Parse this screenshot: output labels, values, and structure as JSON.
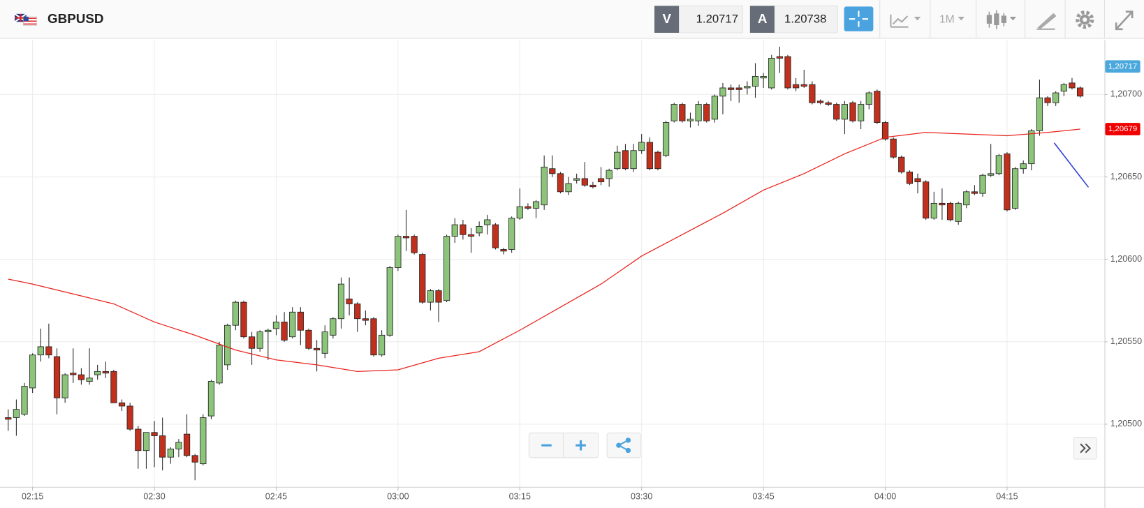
{
  "header": {
    "symbol": "GBPUSD",
    "bid_label": "V",
    "bid": 1.20717,
    "ask_label": "A",
    "ask": 1.20738,
    "timeframe": "1M"
  },
  "chart_data": {
    "type": "candlestick",
    "up_color": "#8cc47a",
    "down_color": "#c0301c",
    "grid": true,
    "xlim": [
      "02:11",
      "04:27"
    ],
    "xticks": [
      "02:15",
      "02:30",
      "02:45",
      "03:00",
      "03:15",
      "03:30",
      "03:45",
      "04:00",
      "04:15"
    ],
    "ylim": [
      1.20462,
      1.20733
    ],
    "yticks": [
      {
        "value": 1.205,
        "label": "1,20500"
      },
      {
        "value": 1.2055,
        "label": "1,20550"
      },
      {
        "value": 1.206,
        "label": "1,20600"
      },
      {
        "value": 1.2065,
        "label": "1,20650"
      },
      {
        "value": 1.207,
        "label": "1,20700"
      }
    ],
    "candles": {
      "x": [
        "02:12",
        "02:13",
        "02:14",
        "02:15",
        "02:16",
        "02:17",
        "02:18",
        "02:19",
        "02:20",
        "02:21",
        "02:22",
        "02:23",
        "02:24",
        "02:25",
        "02:26",
        "02:27",
        "02:28",
        "02:29",
        "02:30",
        "02:31",
        "02:32",
        "02:33",
        "02:34",
        "02:35",
        "02:36",
        "02:37",
        "02:38",
        "02:39",
        "02:40",
        "02:41",
        "02:42",
        "02:43",
        "02:44",
        "02:45",
        "02:46",
        "02:47",
        "02:48",
        "02:49",
        "02:50",
        "02:51",
        "02:52",
        "02:53",
        "02:54",
        "02:55",
        "02:56",
        "02:57",
        "02:58",
        "02:59",
        "03:00",
        "03:01",
        "03:02",
        "03:03",
        "03:04",
        "03:05",
        "03:06",
        "03:07",
        "03:08",
        "03:09",
        "03:10",
        "03:11",
        "03:12",
        "03:13",
        "03:14",
        "03:15",
        "03:16",
        "03:17",
        "03:18",
        "03:19",
        "03:20",
        "03:21",
        "03:22",
        "03:23",
        "03:24",
        "03:25",
        "03:26",
        "03:27",
        "03:28",
        "03:29",
        "03:30",
        "03:31",
        "03:32",
        "03:33",
        "03:34",
        "03:35",
        "03:36",
        "03:37",
        "03:38",
        "03:39",
        "03:40",
        "03:41",
        "03:42",
        "03:43",
        "03:44",
        "03:45",
        "03:46",
        "03:47",
        "03:48",
        "03:49",
        "03:50",
        "03:51",
        "03:52",
        "03:53",
        "03:54",
        "03:55",
        "03:56",
        "03:57",
        "03:58",
        "03:59",
        "04:00",
        "04:01",
        "04:02",
        "04:03",
        "04:04",
        "04:05",
        "04:06",
        "04:07",
        "04:08",
        "04:09",
        "04:10",
        "04:11",
        "04:12",
        "04:13",
        "04:14",
        "04:15",
        "04:16",
        "04:17",
        "04:18",
        "04:19",
        "04:20",
        "04:21",
        "04:22",
        "04:23",
        "04:24"
      ],
      "open": [
        1.20504,
        1.20504,
        1.20506,
        1.20522,
        1.20542,
        1.20547,
        1.20541,
        1.20516,
        1.20531,
        1.2053,
        1.20526,
        1.2053,
        1.20532,
        1.20532,
        1.20513,
        1.20511,
        1.20497,
        1.20484,
        1.20495,
        1.20493,
        1.2048,
        1.20485,
        1.20494,
        1.20481,
        1.20476,
        1.20505,
        1.20525,
        1.20536,
        1.2056,
        1.20574,
        1.20553,
        1.20546,
        1.20556,
        1.20558,
        1.20562,
        1.20553,
        1.20568,
        1.20557,
        1.20546,
        1.20543,
        1.20554,
        1.20564,
        1.20576,
        1.20573,
        1.20564,
        1.20564,
        1.20542,
        1.20554,
        1.20595,
        1.20614,
        1.20614,
        1.20603,
        1.20574,
        1.20581,
        1.20575,
        1.20614,
        1.20621,
        1.20615,
        1.20616,
        1.20621,
        1.20621,
        1.20606,
        1.20606,
        1.20625,
        1.20632,
        1.20631,
        1.20633,
        1.20655,
        1.20652,
        1.20641,
        1.20648,
        1.20649,
        1.20645,
        1.20649,
        1.20649,
        1.20655,
        1.20666,
        1.20655,
        1.20666,
        1.20671,
        1.20665,
        1.20663,
        1.20684,
        1.20694,
        1.20684,
        1.20684,
        1.20694,
        1.20685,
        1.20699,
        1.20704,
        1.20704,
        1.20704,
        1.20705,
        1.2071,
        1.20704,
        1.20723,
        1.20723,
        1.20706,
        1.20706,
        1.20706,
        1.20696,
        1.20695,
        1.20694,
        1.20685,
        1.20695,
        1.20684,
        1.20694,
        1.20702,
        1.20683,
        1.20673,
        1.20662,
        1.20653,
        1.20649,
        1.20647,
        1.20625,
        1.20634,
        1.20634,
        1.20623,
        1.20633,
        1.20641,
        1.2064,
        1.20651,
        1.20652,
        1.20664,
        1.20631,
        1.20655,
        1.20658,
        1.20678,
        1.20698,
        1.20695,
        1.20702,
        1.20707,
        1.20704
      ],
      "high": [
        1.20509,
        1.20515,
        1.20525,
        1.20543,
        1.20558,
        1.20561,
        1.20546,
        1.20531,
        1.20546,
        1.20534,
        1.20546,
        1.20536,
        1.20538,
        1.20533,
        1.20515,
        1.20513,
        1.20499,
        1.20494,
        1.20502,
        1.20504,
        1.20486,
        1.20491,
        1.20506,
        1.20482,
        1.20506,
        1.20527,
        1.2055,
        1.20561,
        1.20575,
        1.20575,
        1.20556,
        1.20557,
        1.20558,
        1.20566,
        1.20568,
        1.20571,
        1.20571,
        1.20558,
        1.20551,
        1.2056,
        1.20565,
        1.20589,
        1.20589,
        1.20574,
        1.20569,
        1.20565,
        1.20557,
        1.20596,
        1.20615,
        1.2063,
        1.20615,
        1.20604,
        1.20582,
        1.20582,
        1.20615,
        1.20625,
        1.20624,
        1.20619,
        1.20623,
        1.20627,
        1.20622,
        1.20607,
        1.20626,
        1.20643,
        1.20634,
        1.20636,
        1.20663,
        1.20663,
        1.20653,
        1.2065,
        1.20652,
        1.20659,
        1.20647,
        1.20656,
        1.20655,
        1.20669,
        1.2067,
        1.2067,
        1.20676,
        1.20674,
        1.20666,
        1.20684,
        1.20695,
        1.20695,
        1.20689,
        1.20696,
        1.20695,
        1.207,
        1.20707,
        1.20706,
        1.20706,
        1.20708,
        1.20719,
        1.20713,
        1.20724,
        1.20729,
        1.20724,
        1.2071,
        1.20715,
        1.20708,
        1.20697,
        1.20696,
        1.20695,
        1.20696,
        1.20696,
        1.20696,
        1.20702,
        1.20703,
        1.20684,
        1.20674,
        1.20663,
        1.20654,
        1.20652,
        1.20648,
        1.20641,
        1.20643,
        1.20635,
        1.20635,
        1.20642,
        1.20645,
        1.20652,
        1.2067,
        1.20664,
        1.20665,
        1.20656,
        1.2066,
        1.20679,
        1.20709,
        1.20699,
        1.20702,
        1.20707,
        1.2071,
        1.20705
      ],
      "low": [
        1.20496,
        1.20493,
        1.20505,
        1.20519,
        1.20538,
        1.2054,
        1.20506,
        1.20513,
        1.20525,
        1.20524,
        1.20524,
        1.20527,
        1.20528,
        1.20513,
        1.20508,
        1.20496,
        1.20473,
        1.20473,
        1.20474,
        1.20472,
        1.20476,
        1.2048,
        1.2048,
        1.20466,
        1.20475,
        1.20503,
        1.20524,
        1.20533,
        1.20557,
        1.20552,
        1.20536,
        1.20544,
        1.20539,
        1.20554,
        1.2055,
        1.20552,
        1.20548,
        1.20545,
        1.20532,
        1.2054,
        1.20552,
        1.20558,
        1.20566,
        1.20556,
        1.2056,
        1.20541,
        1.20541,
        1.20553,
        1.20593,
        1.20605,
        1.20603,
        1.20573,
        1.20569,
        1.20562,
        1.20574,
        1.2061,
        1.20612,
        1.20604,
        1.20614,
        1.20615,
        1.20606,
        1.20603,
        1.20604,
        1.20624,
        1.2063,
        1.20625,
        1.2063,
        1.2065,
        1.2064,
        1.20639,
        1.20646,
        1.20644,
        1.20643,
        1.20645,
        1.20644,
        1.20654,
        1.20654,
        1.20653,
        1.20664,
        1.20654,
        1.20654,
        1.20662,
        1.20683,
        1.20683,
        1.2068,
        1.20681,
        1.20683,
        1.20683,
        1.20688,
        1.20696,
        1.20695,
        1.207,
        1.20698,
        1.20704,
        1.20703,
        1.20713,
        1.20703,
        1.20702,
        1.20704,
        1.20694,
        1.20694,
        1.20693,
        1.20684,
        1.20676,
        1.20683,
        1.20679,
        1.20691,
        1.20682,
        1.20672,
        1.20661,
        1.20652,
        1.20645,
        1.2064,
        1.20624,
        1.20624,
        1.20624,
        1.20623,
        1.20621,
        1.20631,
        1.20639,
        1.20638,
        1.2065,
        1.20651,
        1.20629,
        1.2063,
        1.20652,
        1.20654,
        1.20675,
        1.20693,
        1.20693,
        1.20699,
        1.20703,
        1.20698
      ],
      "close": [
        1.20503,
        1.20509,
        1.20523,
        1.20542,
        1.20547,
        1.20542,
        1.20516,
        1.2053,
        1.2053,
        1.20527,
        1.20528,
        1.20532,
        1.20531,
        1.20513,
        1.20511,
        1.20497,
        1.20484,
        1.20495,
        1.20493,
        1.2048,
        1.20485,
        1.20489,
        1.20481,
        1.20477,
        1.20504,
        1.20526,
        1.20548,
        1.2056,
        1.20574,
        1.20553,
        1.20546,
        1.20556,
        1.20557,
        1.20562,
        1.20551,
        1.20568,
        1.20557,
        1.20546,
        1.20545,
        1.20556,
        1.20564,
        1.20585,
        1.20573,
        1.20564,
        1.20563,
        1.20542,
        1.20554,
        1.20595,
        1.20614,
        1.20613,
        1.20604,
        1.20574,
        1.20581,
        1.20574,
        1.20614,
        1.20621,
        1.20615,
        1.20614,
        1.2062,
        1.20624,
        1.20607,
        1.20605,
        1.20625,
        1.20632,
        1.20631,
        1.20635,
        1.20656,
        1.20652,
        1.20641,
        1.20646,
        1.20649,
        1.20645,
        1.20644,
        1.20647,
        1.20654,
        1.20665,
        1.20655,
        1.20666,
        1.20671,
        1.20655,
        1.20655,
        1.20683,
        1.20694,
        1.20684,
        1.20685,
        1.20694,
        1.20684,
        1.20699,
        1.20704,
        1.20703,
        1.20703,
        1.20705,
        1.20711,
        1.20711,
        1.20722,
        1.20722,
        1.20704,
        1.20704,
        1.20705,
        1.20695,
        1.20695,
        1.20694,
        1.20685,
        1.20694,
        1.20684,
        1.20694,
        1.20701,
        1.20683,
        1.20673,
        1.20662,
        1.20653,
        1.20646,
        1.20647,
        1.20625,
        1.20634,
        1.20633,
        1.20624,
        1.20634,
        1.20641,
        1.2064,
        1.20651,
        1.20652,
        1.20663,
        1.2063,
        1.20655,
        1.20658,
        1.20678,
        1.20698,
        1.20695,
        1.20701,
        1.20706,
        1.20704,
        1.20699
      ]
    },
    "ma": {
      "color": "#e8231c",
      "x": [
        "02:12",
        "02:15",
        "02:20",
        "02:25",
        "02:30",
        "02:35",
        "02:40",
        "02:45",
        "02:50",
        "02:55",
        "03:00",
        "03:05",
        "03:10",
        "03:15",
        "03:20",
        "03:25",
        "03:30",
        "03:35",
        "03:40",
        "03:45",
        "03:50",
        "03:55",
        "04:00",
        "04:05",
        "04:10",
        "04:15",
        "04:20",
        "04:24"
      ],
      "values": [
        1.20588,
        1.20585,
        1.20579,
        1.20573,
        1.20562,
        1.20554,
        1.20545,
        1.20539,
        1.20536,
        1.20532,
        1.20533,
        1.2054,
        1.20544,
        1.20557,
        1.20571,
        1.20585,
        1.20602,
        1.20615,
        1.20628,
        1.20642,
        1.20652,
        1.20664,
        1.20674,
        1.20677,
        1.20676,
        1.20675,
        1.20677,
        1.20679
      ]
    },
    "price_tags": [
      {
        "value": 1.20717,
        "label": "1,20717",
        "color": "#4aa8dc"
      },
      {
        "value": 1.20679,
        "label": "1,20679",
        "color": "#f00000"
      }
    ]
  }
}
